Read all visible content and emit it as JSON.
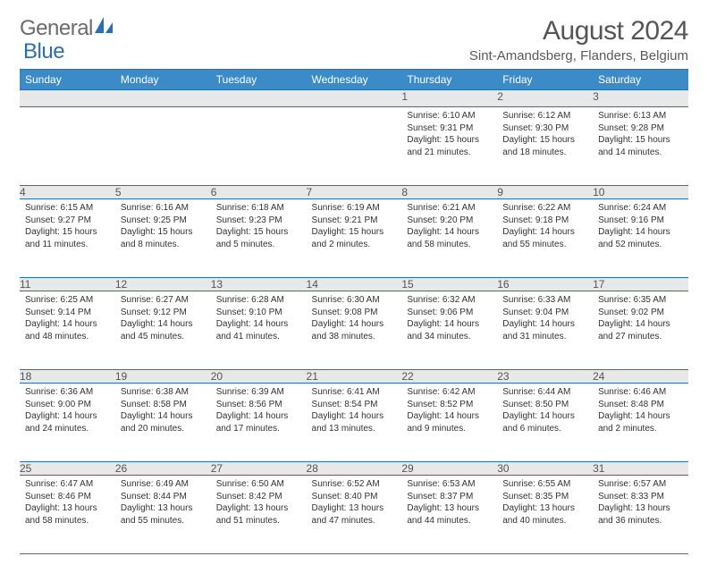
{
  "brand": {
    "part1": "General",
    "part2": "Blue"
  },
  "title": "August 2024",
  "subtitle": "Sint-Amandsberg, Flanders, Belgium",
  "colors": {
    "header_bg": "#3b8bc9",
    "rule": "#2a6fb5",
    "daynum_bg": "#e8e8e8",
    "text": "#333333",
    "title_text": "#555555",
    "logo_gray": "#6b6b6b",
    "logo_blue": "#2a6fb5"
  },
  "weekdays": [
    "Sunday",
    "Monday",
    "Tuesday",
    "Wednesday",
    "Thursday",
    "Friday",
    "Saturday"
  ],
  "weeks": [
    [
      null,
      null,
      null,
      null,
      {
        "n": "1",
        "sunrise": "6:10 AM",
        "sunset": "9:31 PM",
        "daylight": "15 hours and 21 minutes."
      },
      {
        "n": "2",
        "sunrise": "6:12 AM",
        "sunset": "9:30 PM",
        "daylight": "15 hours and 18 minutes."
      },
      {
        "n": "3",
        "sunrise": "6:13 AM",
        "sunset": "9:28 PM",
        "daylight": "15 hours and 14 minutes."
      }
    ],
    [
      {
        "n": "4",
        "sunrise": "6:15 AM",
        "sunset": "9:27 PM",
        "daylight": "15 hours and 11 minutes."
      },
      {
        "n": "5",
        "sunrise": "6:16 AM",
        "sunset": "9:25 PM",
        "daylight": "15 hours and 8 minutes."
      },
      {
        "n": "6",
        "sunrise": "6:18 AM",
        "sunset": "9:23 PM",
        "daylight": "15 hours and 5 minutes."
      },
      {
        "n": "7",
        "sunrise": "6:19 AM",
        "sunset": "9:21 PM",
        "daylight": "15 hours and 2 minutes."
      },
      {
        "n": "8",
        "sunrise": "6:21 AM",
        "sunset": "9:20 PM",
        "daylight": "14 hours and 58 minutes."
      },
      {
        "n": "9",
        "sunrise": "6:22 AM",
        "sunset": "9:18 PM",
        "daylight": "14 hours and 55 minutes."
      },
      {
        "n": "10",
        "sunrise": "6:24 AM",
        "sunset": "9:16 PM",
        "daylight": "14 hours and 52 minutes."
      }
    ],
    [
      {
        "n": "11",
        "sunrise": "6:25 AM",
        "sunset": "9:14 PM",
        "daylight": "14 hours and 48 minutes."
      },
      {
        "n": "12",
        "sunrise": "6:27 AM",
        "sunset": "9:12 PM",
        "daylight": "14 hours and 45 minutes."
      },
      {
        "n": "13",
        "sunrise": "6:28 AM",
        "sunset": "9:10 PM",
        "daylight": "14 hours and 41 minutes."
      },
      {
        "n": "14",
        "sunrise": "6:30 AM",
        "sunset": "9:08 PM",
        "daylight": "14 hours and 38 minutes."
      },
      {
        "n": "15",
        "sunrise": "6:32 AM",
        "sunset": "9:06 PM",
        "daylight": "14 hours and 34 minutes."
      },
      {
        "n": "16",
        "sunrise": "6:33 AM",
        "sunset": "9:04 PM",
        "daylight": "14 hours and 31 minutes."
      },
      {
        "n": "17",
        "sunrise": "6:35 AM",
        "sunset": "9:02 PM",
        "daylight": "14 hours and 27 minutes."
      }
    ],
    [
      {
        "n": "18",
        "sunrise": "6:36 AM",
        "sunset": "9:00 PM",
        "daylight": "14 hours and 24 minutes."
      },
      {
        "n": "19",
        "sunrise": "6:38 AM",
        "sunset": "8:58 PM",
        "daylight": "14 hours and 20 minutes."
      },
      {
        "n": "20",
        "sunrise": "6:39 AM",
        "sunset": "8:56 PM",
        "daylight": "14 hours and 17 minutes."
      },
      {
        "n": "21",
        "sunrise": "6:41 AM",
        "sunset": "8:54 PM",
        "daylight": "14 hours and 13 minutes."
      },
      {
        "n": "22",
        "sunrise": "6:42 AM",
        "sunset": "8:52 PM",
        "daylight": "14 hours and 9 minutes."
      },
      {
        "n": "23",
        "sunrise": "6:44 AM",
        "sunset": "8:50 PM",
        "daylight": "14 hours and 6 minutes."
      },
      {
        "n": "24",
        "sunrise": "6:46 AM",
        "sunset": "8:48 PM",
        "daylight": "14 hours and 2 minutes."
      }
    ],
    [
      {
        "n": "25",
        "sunrise": "6:47 AM",
        "sunset": "8:46 PM",
        "daylight": "13 hours and 58 minutes."
      },
      {
        "n": "26",
        "sunrise": "6:49 AM",
        "sunset": "8:44 PM",
        "daylight": "13 hours and 55 minutes."
      },
      {
        "n": "27",
        "sunrise": "6:50 AM",
        "sunset": "8:42 PM",
        "daylight": "13 hours and 51 minutes."
      },
      {
        "n": "28",
        "sunrise": "6:52 AM",
        "sunset": "8:40 PM",
        "daylight": "13 hours and 47 minutes."
      },
      {
        "n": "29",
        "sunrise": "6:53 AM",
        "sunset": "8:37 PM",
        "daylight": "13 hours and 44 minutes."
      },
      {
        "n": "30",
        "sunrise": "6:55 AM",
        "sunset": "8:35 PM",
        "daylight": "13 hours and 40 minutes."
      },
      {
        "n": "31",
        "sunrise": "6:57 AM",
        "sunset": "8:33 PM",
        "daylight": "13 hours and 36 minutes."
      }
    ]
  ],
  "labels": {
    "sunrise": "Sunrise: ",
    "sunset": "Sunset: ",
    "daylight": "Daylight: "
  }
}
